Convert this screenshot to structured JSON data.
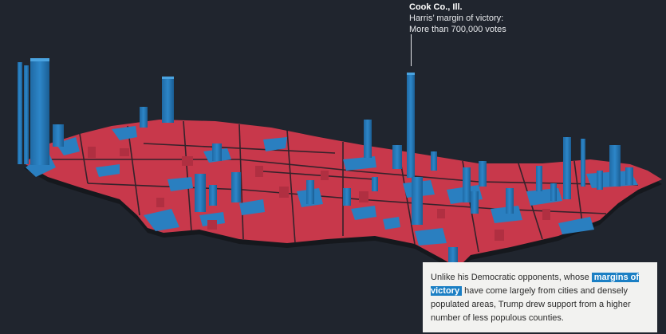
{
  "annotation": {
    "place": "Cook Co., Ill.",
    "line1": "Harris’ margin of victory:",
    "line2": "More than 700,000 votes"
  },
  "caption": {
    "before": "Unlike his Democratic opponents, whose ",
    "highlight": "margins of victory",
    "after": " have come largely from cities and densely populated areas, Trump drew support from a higher number of less populous counties."
  },
  "colors": {
    "background": "#20252e",
    "republican": "#c8384b",
    "democrat": "#2a7fc0",
    "highlight": "#1b7fc4",
    "caption_bg": "#f2f2f0"
  }
}
